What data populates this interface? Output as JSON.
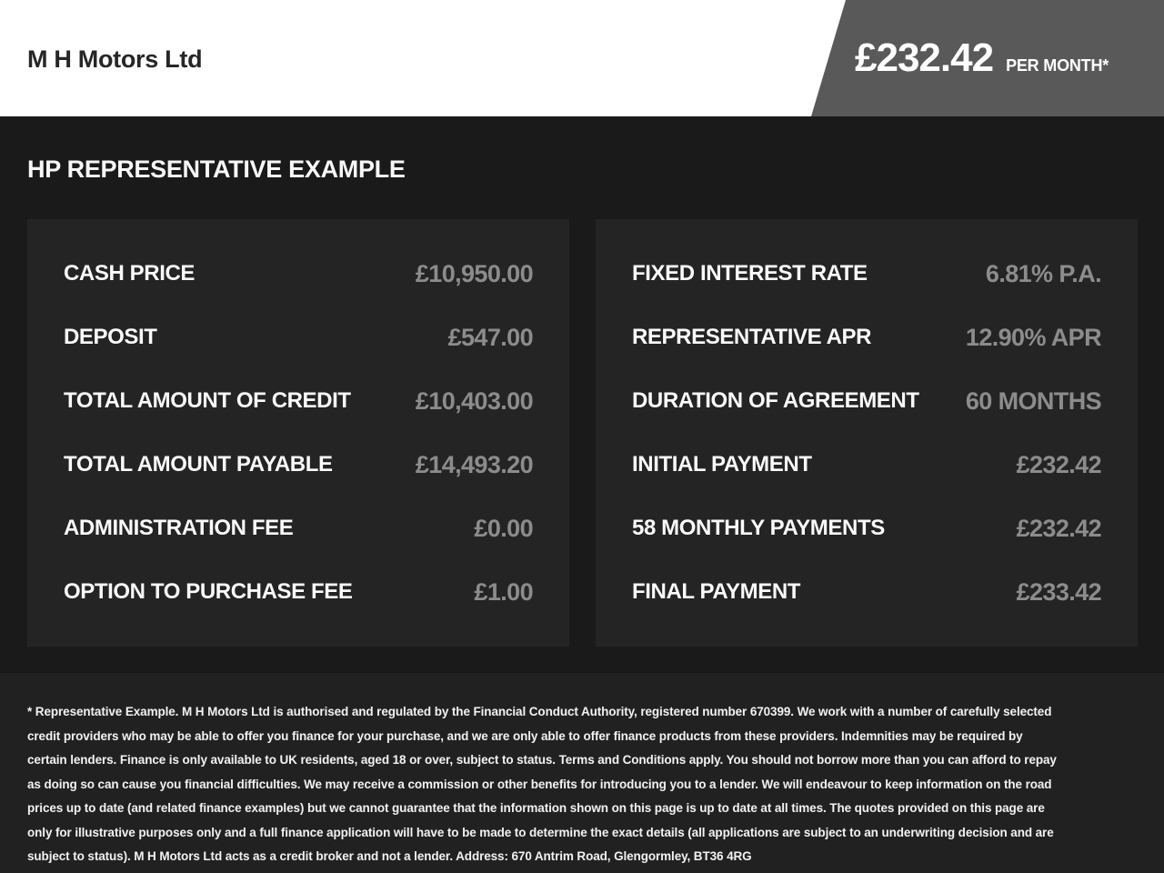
{
  "header": {
    "brand": "M H Motors Ltd",
    "badge": {
      "price": "£232.42",
      "period": "PER MONTH*"
    }
  },
  "main": {
    "title": "HP REPRESENTATIVE EXAMPLE",
    "panels": [
      {
        "rows": [
          {
            "label": "CASH PRICE",
            "value": "£10,950.00"
          },
          {
            "label": "DEPOSIT",
            "value": "£547.00"
          },
          {
            "label": "TOTAL AMOUNT OF CREDIT",
            "value": "£10,403.00"
          },
          {
            "label": "TOTAL AMOUNT PAYABLE",
            "value": "£14,493.20"
          },
          {
            "label": "ADMINISTRATION FEE",
            "value": "£0.00"
          },
          {
            "label": "OPTION TO PURCHASE FEE",
            "value": "£1.00"
          }
        ]
      },
      {
        "rows": [
          {
            "label": "FIXED INTEREST RATE",
            "value": "6.81% P.A."
          },
          {
            "label": "REPRESENTATIVE APR",
            "value": "12.90% APR"
          },
          {
            "label": "DURATION OF AGREEMENT",
            "value": "60 MONTHS"
          },
          {
            "label": "INITIAL PAYMENT",
            "value": "£232.42"
          },
          {
            "label": "58 MONTHLY PAYMENTS",
            "value": "£232.42"
          },
          {
            "label": "FINAL PAYMENT",
            "value": "£233.42"
          }
        ]
      }
    ]
  },
  "footer": {
    "disclaimer": "* Representative Example. M H Motors Ltd is authorised and regulated by the Financial Conduct Authority, registered number 670399. We work with a number of carefully selected credit providers who may be able to offer you finance for your purchase, and we are only able to offer finance products from these providers. Indemnities may be required by certain lenders. Finance is only available to UK residents, aged 18 or over, subject to status. Terms and Conditions apply. You should not borrow more than you can afford to repay as doing so can cause you financial difficulties. We may receive a commission or other benefits for introducing you to a lender. We will endeavour to keep information on the road prices up to date (and related finance examples) but we cannot guarantee that the information shown on this page is up to date at all times. The quotes provided on this page are only for illustrative purposes only and a full finance application will have to be made to determine the exact details (all applications are subject to an underwriting decision and are subject to status). M H Motors Ltd acts as a credit broker and not a lender. Address: 670 Antrim Road, Glengormley, BT36 4RG"
  },
  "colors": {
    "badge_gray": "#595959",
    "page_bg": "#1a1a1a",
    "panel_bg": "#242424",
    "footer_bg": "#212121",
    "value_gray": "#8c8c8c"
  }
}
